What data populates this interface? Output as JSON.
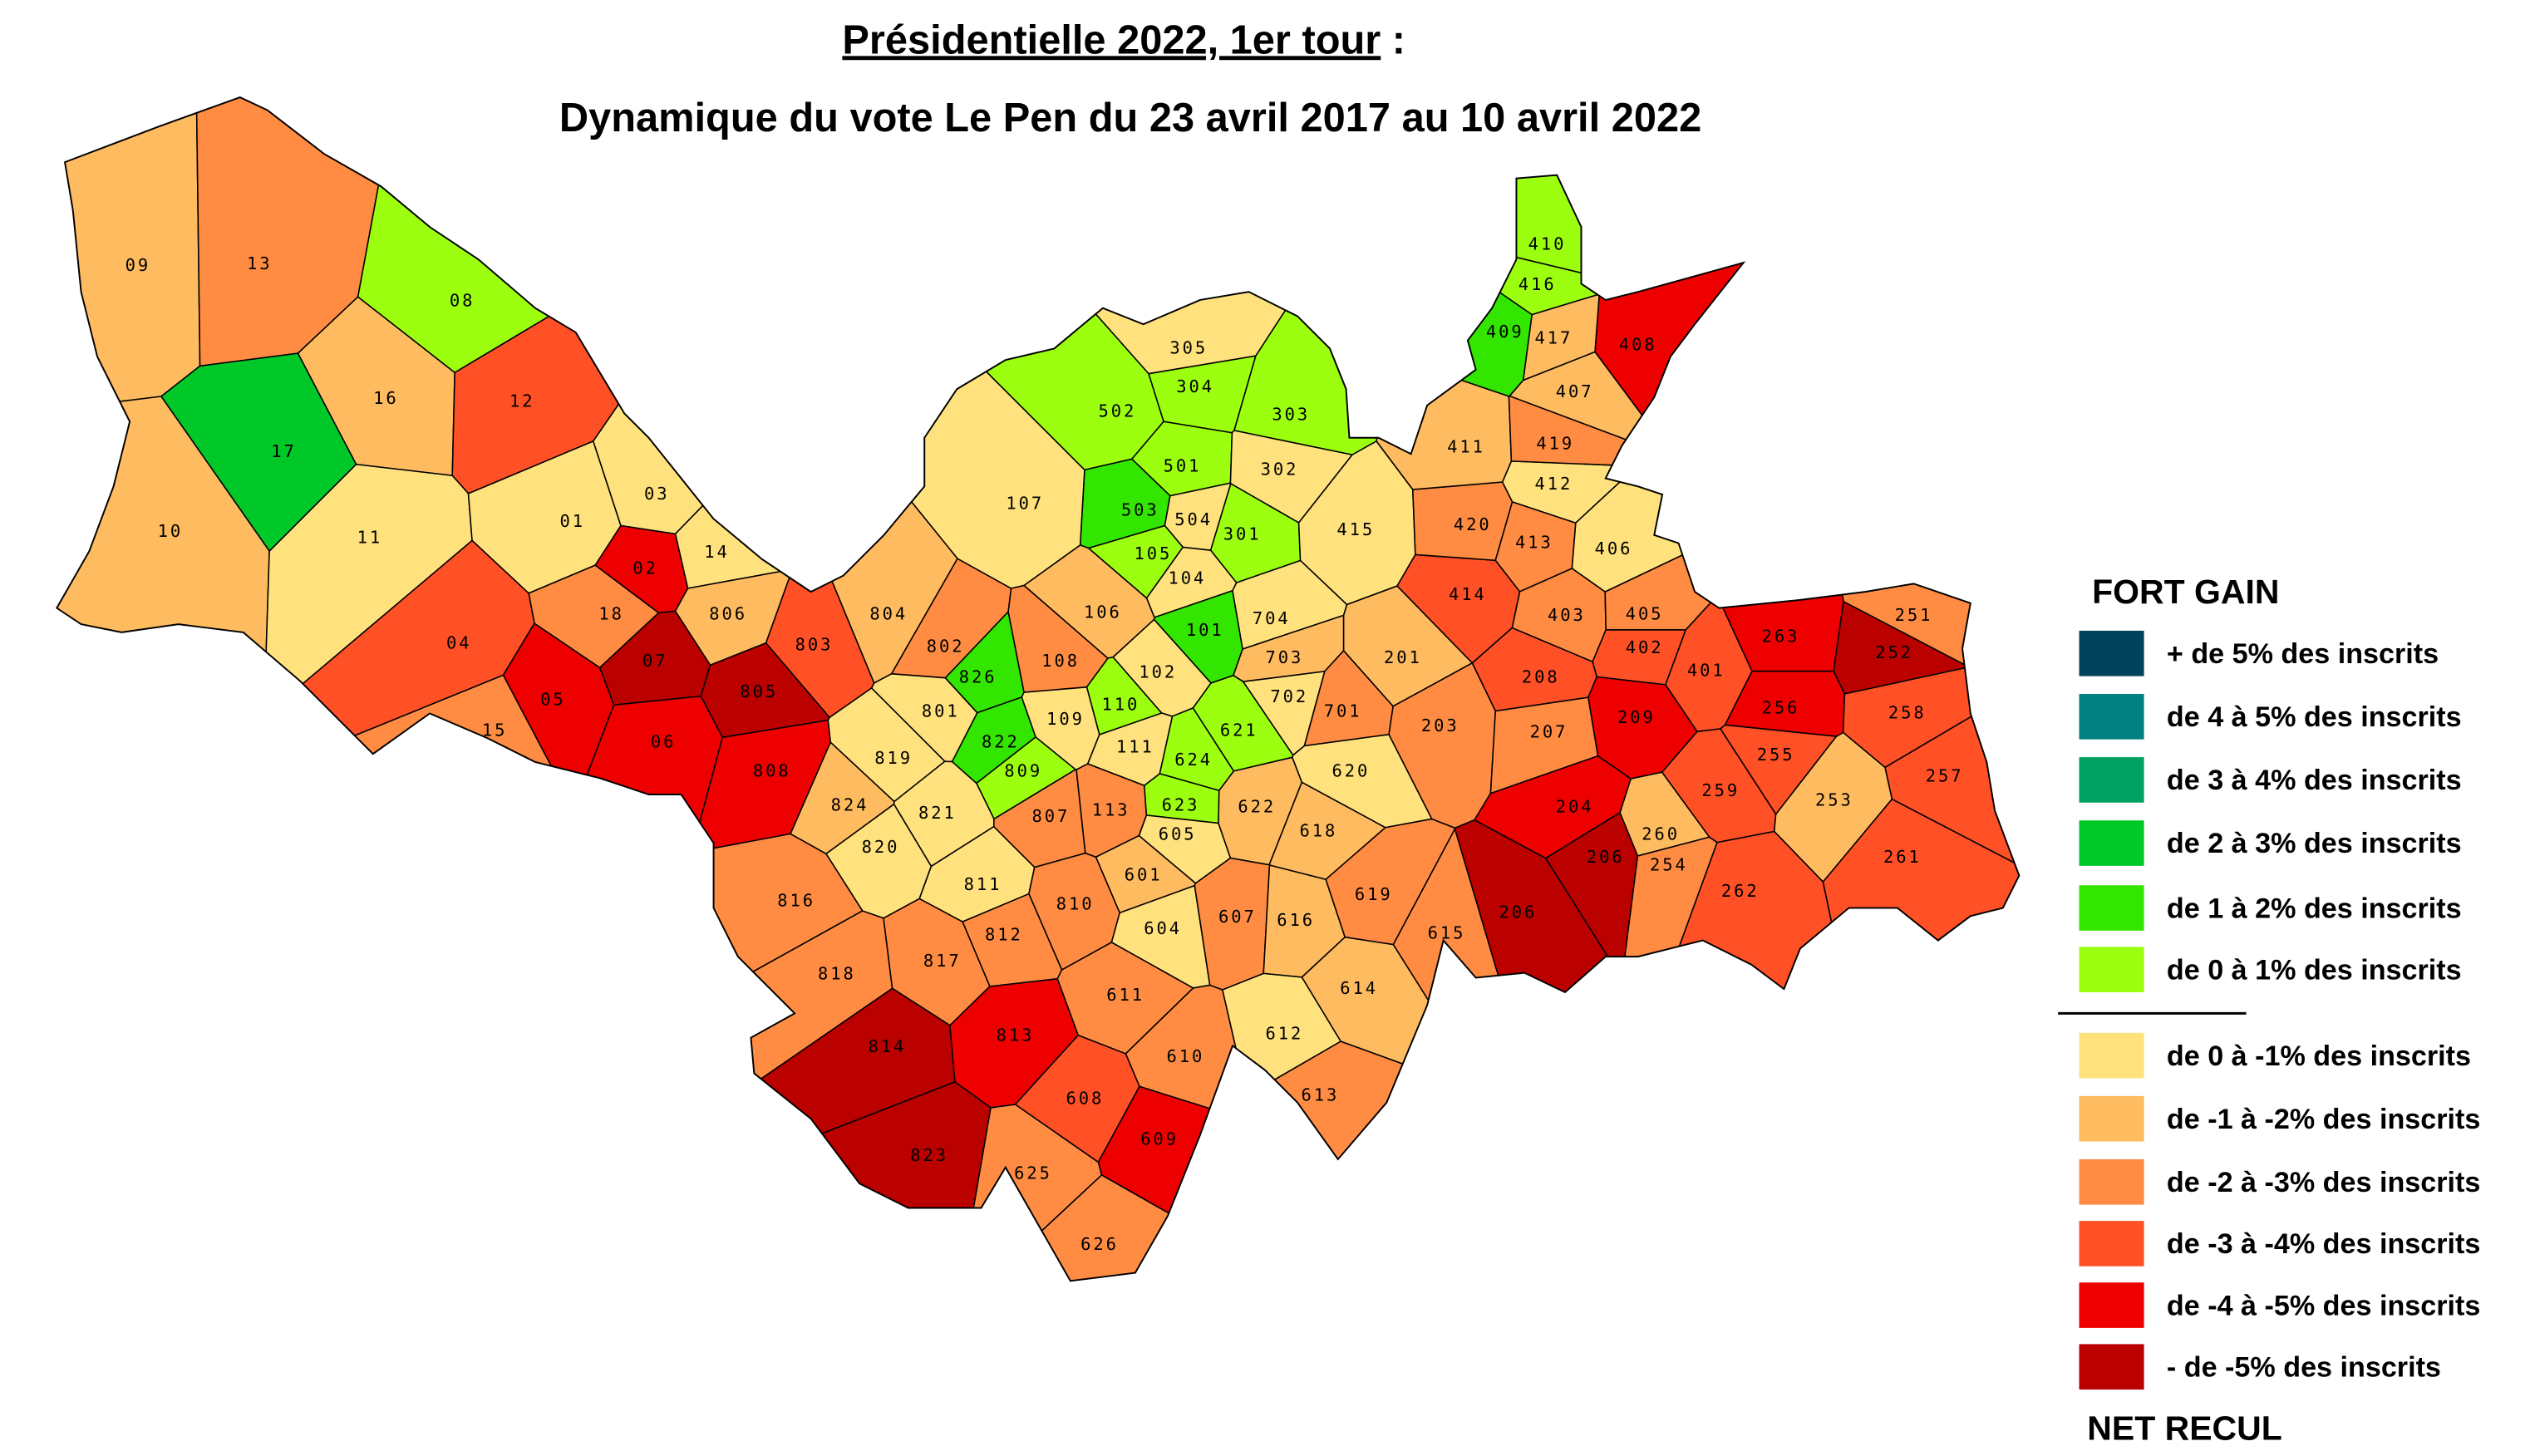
{
  "title": {
    "underlined": "Présidentielle 2022, 1er tour",
    "suffix": " :"
  },
  "subtitle": "Dynamique du vote Le Pen du 23 avril 2017 au 10 avril 2022",
  "legend": {
    "top_label": "FORT GAIN",
    "bottom_label": "NET RECUL",
    "classes": [
      {
        "label": "+ de 5% des inscrits",
        "color": "#00435a"
      },
      {
        "label": "de 4 à 5% des inscrits",
        "color": "#008080"
      },
      {
        "label": "de 3 à 4% des inscrits",
        "color": "#00a064"
      },
      {
        "label": "de 2 à 3% des inscrits",
        "color": "#00c828"
      },
      {
        "label": "de 1 à 2% des inscrits",
        "color": "#33e600"
      },
      {
        "label": "de 0 à 1% des inscrits",
        "color": "#9cff10"
      },
      {
        "label": "de 0 à -1% des inscrits",
        "color": "#ffe17d"
      },
      {
        "label": "de -1 à -2% des inscrits",
        "color": "#ffbb60"
      },
      {
        "label": "de -2 à -3% des inscrits",
        "color": "#ff8c42"
      },
      {
        "label": "de -3 à -4% des inscrits",
        "color": "#ff5026"
      },
      {
        "label": "de -4 à -5% des inscrits",
        "color": "#ee0000"
      },
      {
        "label": "- de -5% des inscrits",
        "color": "#bb0000"
      }
    ]
  },
  "districts": [
    {
      "id": "09",
      "class": 7
    },
    {
      "id": "13",
      "class": 8
    },
    {
      "id": "08",
      "class": 5
    },
    {
      "id": "16",
      "class": 7
    },
    {
      "id": "12",
      "class": 9
    },
    {
      "id": "17",
      "class": 3
    },
    {
      "id": "10",
      "class": 7
    },
    {
      "id": "11",
      "class": 6
    },
    {
      "id": "01",
      "class": 6
    },
    {
      "id": "03",
      "class": 6
    },
    {
      "id": "14",
      "class": 6
    },
    {
      "id": "02",
      "class": 10
    },
    {
      "id": "18",
      "class": 8
    },
    {
      "id": "806",
      "class": 7
    },
    {
      "id": "04",
      "class": 9
    },
    {
      "id": "07",
      "class": 11
    },
    {
      "id": "05",
      "class": 10
    },
    {
      "id": "06",
      "class": 10
    },
    {
      "id": "15",
      "class": 8
    },
    {
      "id": "803",
      "class": 9
    },
    {
      "id": "805",
      "class": 11
    },
    {
      "id": "808",
      "class": 10
    },
    {
      "id": "804",
      "class": 7
    },
    {
      "id": "802",
      "class": 8
    },
    {
      "id": "801",
      "class": 6
    },
    {
      "id": "826",
      "class": 4
    },
    {
      "id": "822",
      "class": 4
    },
    {
      "id": "809",
      "class": 5
    },
    {
      "id": "819",
      "class": 6
    },
    {
      "id": "824",
      "class": 7
    },
    {
      "id": "821",
      "class": 6
    },
    {
      "id": "820",
      "class": 6
    },
    {
      "id": "811",
      "class": 6
    },
    {
      "id": "107",
      "class": 6
    },
    {
      "id": "502",
      "class": 5
    },
    {
      "id": "305",
      "class": 6
    },
    {
      "id": "304",
      "class": 5
    },
    {
      "id": "303",
      "class": 5
    },
    {
      "id": "501",
      "class": 5
    },
    {
      "id": "302",
      "class": 6
    },
    {
      "id": "503",
      "class": 4
    },
    {
      "id": "504",
      "class": 6
    },
    {
      "id": "301",
      "class": 5
    },
    {
      "id": "105",
      "class": 5
    },
    {
      "id": "104",
      "class": 6
    },
    {
      "id": "415",
      "class": 6
    },
    {
      "id": "106",
      "class": 7
    },
    {
      "id": "101",
      "class": 4
    },
    {
      "id": "704",
      "class": 6
    },
    {
      "id": "703",
      "class": 7
    },
    {
      "id": "702",
      "class": 6
    },
    {
      "id": "701",
      "class": 8
    },
    {
      "id": "108",
      "class": 8
    },
    {
      "id": "102",
      "class": 6
    },
    {
      "id": "110",
      "class": 5
    },
    {
      "id": "109",
      "class": 6
    },
    {
      "id": "111",
      "class": 6
    },
    {
      "id": "621",
      "class": 5
    },
    {
      "id": "624",
      "class": 5
    },
    {
      "id": "620",
      "class": 6
    },
    {
      "id": "807",
      "class": 8
    },
    {
      "id": "113",
      "class": 8
    },
    {
      "id": "623",
      "class": 5
    },
    {
      "id": "605",
      "class": 6
    },
    {
      "id": "622",
      "class": 7
    },
    {
      "id": "618",
      "class": 7
    },
    {
      "id": "601",
      "class": 7
    },
    {
      "id": "810",
      "class": 8
    },
    {
      "id": "812",
      "class": 8
    },
    {
      "id": "816",
      "class": 8
    },
    {
      "id": "818",
      "class": 8
    },
    {
      "id": "817",
      "class": 8
    },
    {
      "id": "604",
      "class": 6
    },
    {
      "id": "607",
      "class": 8
    },
    {
      "id": "616",
      "class": 7
    },
    {
      "id": "619",
      "class": 8
    },
    {
      "id": "615",
      "class": 8
    },
    {
      "id": "614",
      "class": 7
    },
    {
      "id": "611",
      "class": 8
    },
    {
      "id": "610",
      "class": 8
    },
    {
      "id": "612",
      "class": 6
    },
    {
      "id": "613",
      "class": 8
    },
    {
      "id": "814",
      "class": 11
    },
    {
      "id": "813",
      "class": 10
    },
    {
      "id": "608",
      "class": 9
    },
    {
      "id": "609",
      "class": 10
    },
    {
      "id": "823",
      "class": 11
    },
    {
      "id": "625",
      "class": 8
    },
    {
      "id": "626",
      "class": 8
    },
    {
      "id": "201",
      "class": 7
    },
    {
      "id": "203",
      "class": 8
    },
    {
      "id": "206",
      "class": 11
    },
    {
      "id": "204",
      "class": 10
    },
    {
      "id": "206",
      "class": 11
    },
    {
      "id": "207",
      "class": 8
    },
    {
      "id": "208",
      "class": 9
    },
    {
      "id": "209",
      "class": 10
    },
    {
      "id": "414",
      "class": 9
    },
    {
      "id": "420",
      "class": 8
    },
    {
      "id": "413",
      "class": 8
    },
    {
      "id": "412",
      "class": 6
    },
    {
      "id": "411",
      "class": 7
    },
    {
      "id": "419",
      "class": 8
    },
    {
      "id": "407",
      "class": 7
    },
    {
      "id": "417",
      "class": 7
    },
    {
      "id": "409",
      "class": 4
    },
    {
      "id": "416",
      "class": 5
    },
    {
      "id": "410",
      "class": 5
    },
    {
      "id": "408",
      "class": 10
    },
    {
      "id": "406",
      "class": 6
    },
    {
      "id": "403",
      "class": 8
    },
    {
      "id": "405",
      "class": 8
    },
    {
      "id": "402",
      "class": 9
    },
    {
      "id": "401",
      "class": 9
    },
    {
      "id": "263",
      "class": 10
    },
    {
      "id": "251",
      "class": 8
    },
    {
      "id": "252",
      "class": 11
    },
    {
      "id": "256",
      "class": 10
    },
    {
      "id": "258",
      "class": 9
    },
    {
      "id": "255",
      "class": 9
    },
    {
      "id": "257",
      "class": 9
    },
    {
      "id": "259",
      "class": 9
    },
    {
      "id": "253",
      "class": 7
    },
    {
      "id": "260",
      "class": 7
    },
    {
      "id": "254",
      "class": 8
    },
    {
      "id": "262",
      "class": 9
    },
    {
      "id": "261",
      "class": 9
    }
  ]
}
